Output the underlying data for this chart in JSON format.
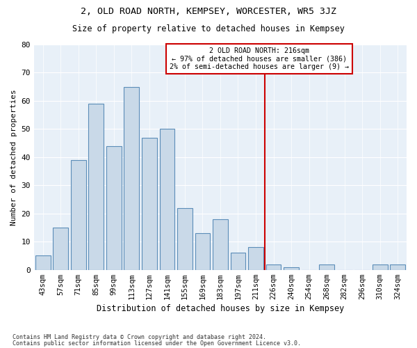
{
  "title": "2, OLD ROAD NORTH, KEMPSEY, WORCESTER, WR5 3JZ",
  "subtitle": "Size of property relative to detached houses in Kempsey",
  "xlabel": "Distribution of detached houses by size in Kempsey",
  "ylabel": "Number of detached properties",
  "bar_labels": [
    "43sqm",
    "57sqm",
    "71sqm",
    "85sqm",
    "99sqm",
    "113sqm",
    "127sqm",
    "141sqm",
    "155sqm",
    "169sqm",
    "183sqm",
    "197sqm",
    "211sqm",
    "226sqm",
    "240sqm",
    "254sqm",
    "268sqm",
    "282sqm",
    "296sqm",
    "310sqm",
    "324sqm"
  ],
  "bar_values": [
    5,
    15,
    39,
    59,
    44,
    65,
    47,
    50,
    22,
    13,
    18,
    6,
    8,
    2,
    1,
    0,
    2,
    0,
    0,
    2,
    2
  ],
  "bar_color": "#c9d9e8",
  "bar_edge_color": "#5b8db8",
  "vline_pos": 12.5,
  "vline_color": "#cc0000",
  "annotation_title": "2 OLD ROAD NORTH: 216sqm",
  "annotation_line1": "← 97% of detached houses are smaller (386)",
  "annotation_line2": "2% of semi-detached houses are larger (9) →",
  "annotation_box_color": "#ffffff",
  "annotation_box_edge": "#cc0000",
  "ylim": [
    0,
    80
  ],
  "yticks": [
    0,
    10,
    20,
    30,
    40,
    50,
    60,
    70,
    80
  ],
  "bg_color": "#e8f0f8",
  "footnote1": "Contains HM Land Registry data © Crown copyright and database right 2024.",
  "footnote2": "Contains public sector information licensed under the Open Government Licence v3.0."
}
